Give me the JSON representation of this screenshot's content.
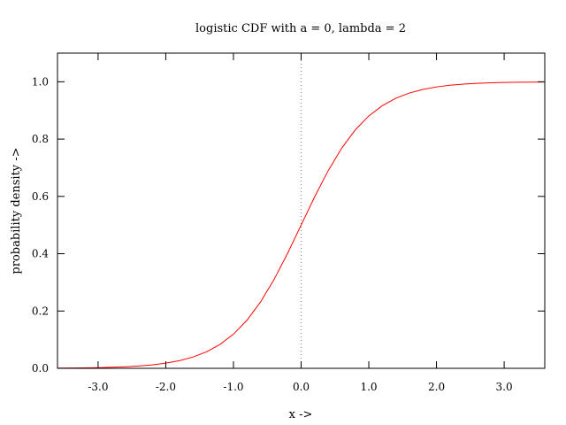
{
  "chart_data": {
    "type": "line",
    "title": "logistic CDF with a = 0, lambda = 2",
    "xlabel": "x ->",
    "ylabel": "probability density ->",
    "xlim": [
      -3.6,
      3.6
    ],
    "ylim": [
      0.0,
      1.1
    ],
    "xticks": [
      -3.0,
      -2.0,
      -1.0,
      0.0,
      1.0,
      2.0,
      3.0
    ],
    "xtick_labels": [
      "-3.0",
      "-2.0",
      "-1.0",
      "0.0",
      "1.0",
      "2.0",
      "3.0"
    ],
    "yticks": [
      0.0,
      0.2,
      0.4,
      0.6,
      0.8,
      1.0
    ],
    "ytick_labels": [
      "0.0",
      "0.2",
      "0.4",
      "0.6",
      "0.8",
      "1.0"
    ],
    "grid": false,
    "reference_line": {
      "orientation": "vertical",
      "x": 0.0,
      "style": "dotted",
      "color": "#808080"
    },
    "series": [
      {
        "color": "#ff0000",
        "x": [
          -3.6,
          -3.4,
          -3.2,
          -3.0,
          -2.8,
          -2.6,
          -2.4,
          -2.2,
          -2.0,
          -1.8,
          -1.6,
          -1.4,
          -1.2,
          -1.0,
          -0.8,
          -0.6,
          -0.4,
          -0.2,
          0.0,
          0.2,
          0.4,
          0.6,
          0.8,
          1.0,
          1.2,
          1.4,
          1.6,
          1.8,
          2.0,
          2.2,
          2.4,
          2.6,
          2.8,
          3.0,
          3.2,
          3.4,
          3.6
        ],
        "y": [
          0.0007,
          0.0011,
          0.0017,
          0.0025,
          0.0037,
          0.0055,
          0.0082,
          0.0121,
          0.018,
          0.0266,
          0.0392,
          0.0573,
          0.0832,
          0.1192,
          0.168,
          0.2315,
          0.31,
          0.4013,
          0.5,
          0.5987,
          0.69,
          0.7685,
          0.832,
          0.8808,
          0.9168,
          0.9427,
          0.9608,
          0.9734,
          0.982,
          0.9879,
          0.9918,
          0.9945,
          0.9963,
          0.9975,
          0.9983,
          0.9989,
          0.9993
        ]
      }
    ]
  }
}
